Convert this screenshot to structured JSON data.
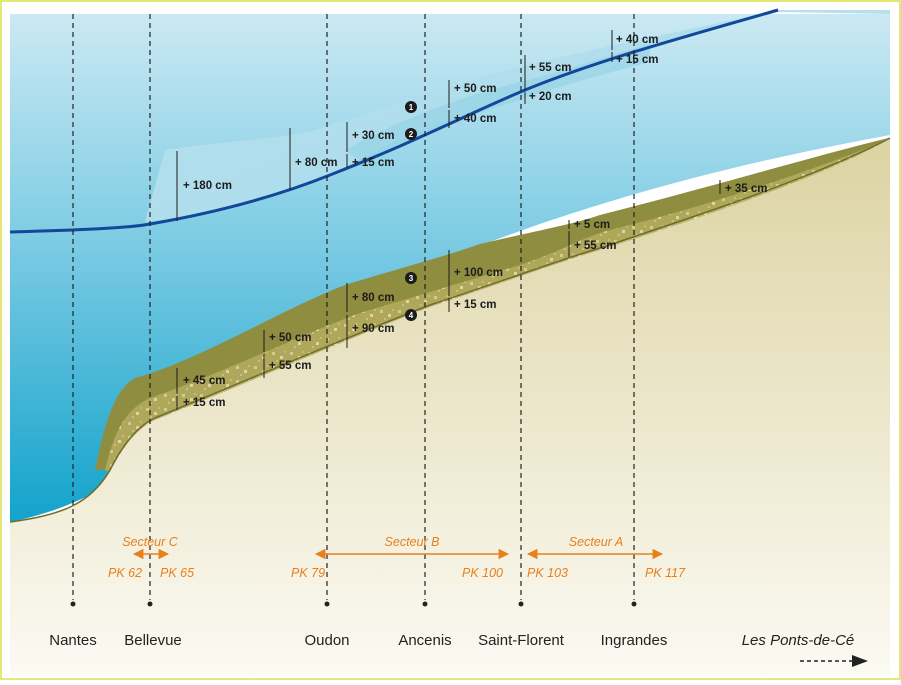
{
  "colors": {
    "frame": "#d8e24a",
    "water_light": "#bfe4f0",
    "water_dark": "#1ea7cc",
    "waterline": "#12489a",
    "sediment": "#8f8d40",
    "sand": "#e8e2bf",
    "sector_orange": "#e8801c"
  },
  "locations": [
    {
      "name": "Nantes"
    },
    {
      "name": "Bellevue"
    },
    {
      "name": "Oudon"
    },
    {
      "name": "Ancenis"
    },
    {
      "name": "Saint-Florent"
    },
    {
      "name": "Ingrandes"
    }
  ],
  "direction_label": "Les Ponts-de-Cé",
  "sectors": [
    {
      "name": "Secteur C",
      "pk_start": "PK 62",
      "pk_end": "PK 65"
    },
    {
      "name": "Secteur B",
      "pk_start": "PK 79",
      "pk_end": "PK 100"
    },
    {
      "name": "Secteur A",
      "pk_start": "PK 103",
      "pk_end": "PK 117"
    }
  ],
  "measurements": {
    "water": [
      "+ 180 cm",
      "+ 80 cm",
      "+ 30 cm",
      "+ 15 cm",
      "+ 50 cm",
      "+ 40 cm",
      "+ 55 cm",
      "+ 20 cm",
      "+ 40 cm",
      "+ 15 cm"
    ],
    "bed": [
      "+ 45 cm",
      "+ 15 cm",
      "+ 50 cm",
      "+ 55 cm",
      "+ 80 cm",
      "+ 90 cm",
      "+ 100 cm",
      "+ 15 cm",
      "+ 5 cm",
      "+ 55 cm",
      "+ 35 cm"
    ]
  },
  "badges": [
    "1",
    "2",
    "3",
    "4"
  ]
}
